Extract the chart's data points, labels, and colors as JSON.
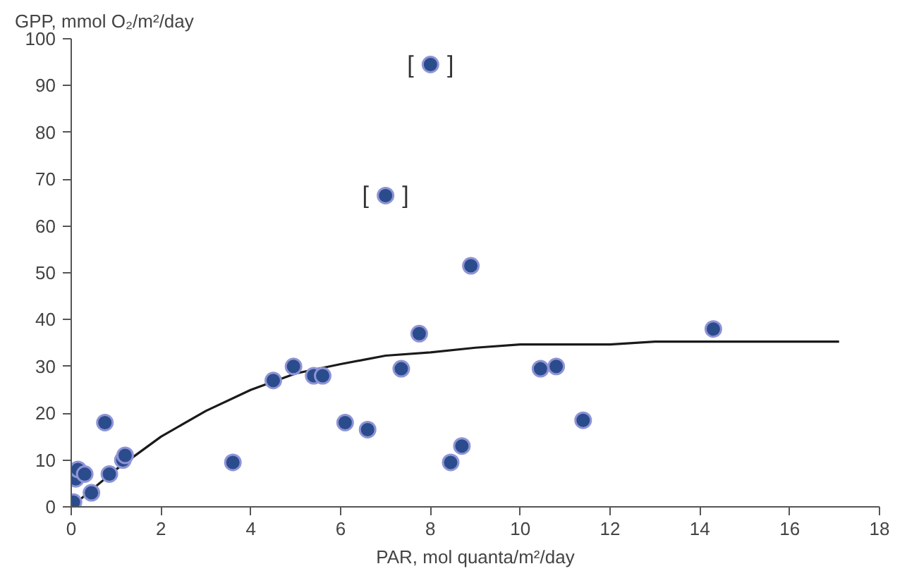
{
  "chart_data": {
    "type": "scatter",
    "xlabel": "PAR, mol quanta/m²/day",
    "ylabel": "GPP, mmol O₂/m²/day",
    "xlim": [
      0,
      18
    ],
    "ylim": [
      0,
      100
    ],
    "xticks": [
      0,
      2,
      4,
      6,
      8,
      10,
      12,
      14,
      16,
      18
    ],
    "yticks": [
      0,
      10,
      20,
      30,
      40,
      50,
      60,
      70,
      80,
      90,
      100
    ],
    "grid": false,
    "marker": "circle",
    "series": [
      {
        "color": "#2b4c8c",
        "x": [
          0.05,
          0.1,
          0.15,
          0.3,
          0.45,
          0.75,
          0.85,
          1.15,
          1.2,
          3.6,
          4.5,
          4.95,
          5.4,
          5.6,
          6.1,
          6.6,
          7.0,
          7.35,
          7.75,
          8.0,
          8.45,
          8.7,
          8.9,
          10.45,
          10.8,
          11.4,
          14.3
        ],
        "values": [
          1,
          6,
          8,
          7,
          3,
          18,
          7,
          10,
          11,
          9.5,
          27,
          30,
          28,
          28,
          18,
          16.5,
          66.5,
          29.5,
          37,
          94.5,
          9.5,
          13,
          51.5,
          29.5,
          30,
          18.5,
          38
        ]
      },
      {
        "type": "line",
        "marker": "none",
        "color": "#1a1a1a",
        "x": [
          0,
          1,
          2,
          3,
          4,
          5,
          6,
          7,
          8,
          9,
          10,
          12,
          13,
          17.1
        ],
        "values": [
          0,
          8,
          15,
          20.5,
          25,
          28.5,
          30.5,
          32.3,
          33,
          34,
          34.7,
          34.7,
          35.3,
          35.3
        ]
      }
    ],
    "annotations": [
      {
        "text": "[     ]",
        "x": 7.0,
        "y": 66.5
      },
      {
        "text": "[     ]",
        "x": 8.0,
        "y": 94.5
      }
    ]
  }
}
